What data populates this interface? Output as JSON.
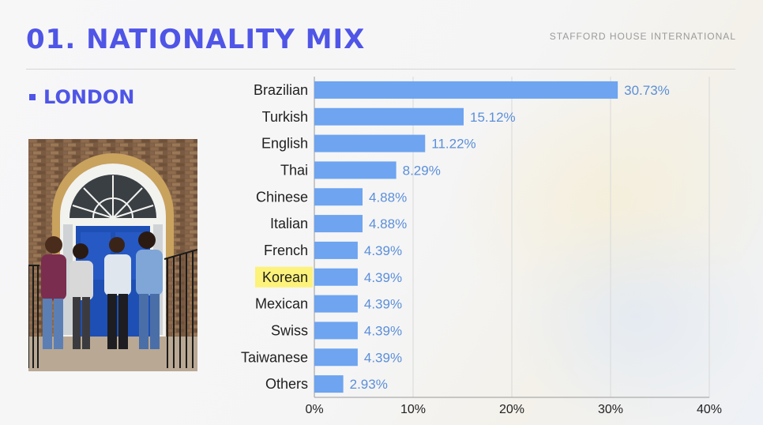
{
  "header": {
    "title": "01. NATIONALITY MIX",
    "brand": "STAFFORD HOUSE INTERNATIONAL"
  },
  "section": {
    "label": "LONDON"
  },
  "photo": {
    "icon": "group-photo-image"
  },
  "colors": {
    "accent": "#4f55e6",
    "bar": "#6ea4f0",
    "value_label": "#5b8fd8",
    "highlight": "#fdf27a"
  },
  "chart_data": {
    "type": "bar",
    "orientation": "horizontal",
    "categories": [
      "Brazilian",
      "Turkish",
      "English",
      "Thai",
      "Chinese",
      "Italian",
      "French",
      "Korean",
      "Mexican",
      "Swiss",
      "Taiwanese",
      "Others"
    ],
    "values": [
      30.73,
      15.12,
      11.22,
      8.29,
      4.88,
      4.88,
      4.39,
      4.39,
      4.39,
      4.39,
      4.39,
      2.93
    ],
    "value_labels": [
      "30.73%",
      "15.12%",
      "11.22%",
      "8.29%",
      "4.88%",
      "4.88%",
      "4.39%",
      "4.39%",
      "4.39%",
      "4.39%",
      "4.39%",
      "2.93%"
    ],
    "highlighted_category": "Korean",
    "xlim": [
      0,
      40
    ],
    "x_ticks": [
      0,
      10,
      20,
      30,
      40
    ],
    "x_tick_labels": [
      "0%",
      "10%",
      "20%",
      "30%",
      "40%"
    ],
    "grid": true,
    "title": "",
    "xlabel": "",
    "ylabel": ""
  }
}
